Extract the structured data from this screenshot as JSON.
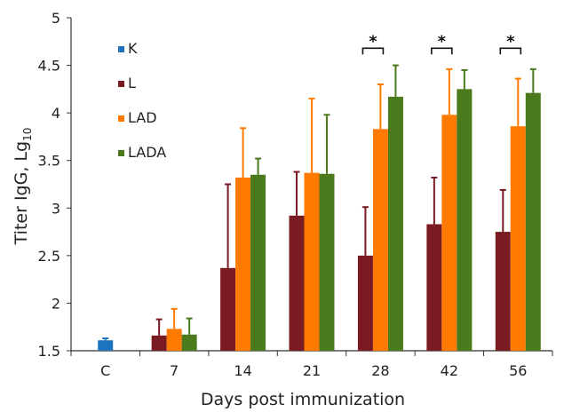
{
  "chart_data": {
    "type": "bar",
    "xlabel": "Days post immunization",
    "ylabel": "Titer IgG, Lg",
    "ylabel_sub": "10",
    "ylim": [
      1.5,
      5
    ],
    "yticks": [
      "1.5",
      "2",
      "2.5",
      "3",
      "3.5",
      "4",
      "4.5",
      "5"
    ],
    "categories": [
      "C",
      "7",
      "14",
      "21",
      "28",
      "42",
      "56"
    ],
    "series": [
      {
        "name": "K",
        "color": "#1e73be",
        "values": [
          1.61,
          null,
          null,
          null,
          null,
          null,
          null
        ],
        "errors": [
          0.02,
          null,
          null,
          null,
          null,
          null,
          null
        ]
      },
      {
        "name": "L",
        "color": "#7a1a22",
        "values": [
          null,
          1.66,
          2.37,
          2.92,
          2.5,
          2.83,
          2.75
        ],
        "errors": [
          null,
          0.17,
          0.88,
          0.46,
          0.51,
          0.49,
          0.44
        ]
      },
      {
        "name": "LAD",
        "color": "#ff7a00",
        "values": [
          null,
          1.73,
          3.32,
          3.37,
          3.83,
          3.98,
          3.86
        ],
        "errors": [
          null,
          0.21,
          0.52,
          0.78,
          0.47,
          0.48,
          0.5
        ]
      },
      {
        "name": "LADA",
        "color": "#4a7a1c",
        "values": [
          null,
          1.67,
          3.35,
          3.36,
          4.17,
          4.25,
          4.21
        ],
        "errors": [
          null,
          0.17,
          0.17,
          0.62,
          0.33,
          0.2,
          0.25
        ]
      }
    ],
    "significance": [
      {
        "category": "28",
        "from": "L",
        "to": "LADA",
        "label": "*"
      },
      {
        "category": "42",
        "from": "L",
        "to": "LADA",
        "label": "*"
      },
      {
        "category": "56",
        "from": "L",
        "to": "LADA",
        "label": "*"
      }
    ],
    "legend_position": "top-left",
    "grid": false
  }
}
